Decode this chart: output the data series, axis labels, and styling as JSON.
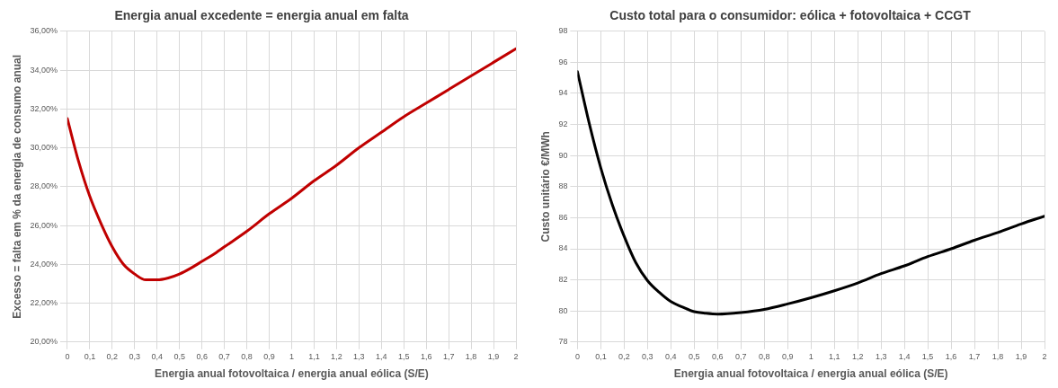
{
  "chart_data": [
    {
      "type": "line",
      "title": "Energia anual excedente = energia anual em falta",
      "xlabel": "Energia anual fotovoltaica / energia anual eólica (S/E)",
      "ylabel": "Excesso = falta em % da energia de consumo anual",
      "x": [
        0,
        0.05,
        0.1,
        0.15,
        0.2,
        0.25,
        0.3,
        0.35,
        0.4,
        0.45,
        0.5,
        0.55,
        0.6,
        0.65,
        0.7,
        0.8,
        0.9,
        1.0,
        1.1,
        1.2,
        1.3,
        1.4,
        1.5,
        1.6,
        1.7,
        1.8,
        1.9,
        2.0
      ],
      "series": [
        {
          "color": "#c00000",
          "values": [
            31.5,
            29.3,
            27.5,
            26.1,
            24.9,
            24.0,
            23.5,
            23.2,
            23.2,
            23.3,
            23.5,
            23.8,
            24.15,
            24.5,
            24.9,
            25.7,
            26.6,
            27.4,
            28.3,
            29.1,
            30.0,
            30.8,
            31.6,
            32.3,
            33.0,
            33.7,
            34.4,
            35.1
          ]
        }
      ],
      "xlim": [
        0,
        2
      ],
      "xticks": [
        0,
        {
          "value": 0.1,
          "label": "0,1"
        },
        {
          "value": 0.2,
          "label": "0,2"
        },
        {
          "value": 0.3,
          "label": "0,3"
        },
        {
          "value": 0.4,
          "label": "0,4"
        },
        {
          "value": 0.5,
          "label": "0,5"
        },
        {
          "value": 0.6,
          "label": "0,6"
        },
        {
          "value": 0.7,
          "label": "0,7"
        },
        {
          "value": 0.8,
          "label": "0,8"
        },
        {
          "value": 0.9,
          "label": "0,9"
        },
        1,
        {
          "value": 1.1,
          "label": "1,1"
        },
        {
          "value": 1.2,
          "label": "1,2"
        },
        {
          "value": 1.3,
          "label": "1,3"
        },
        {
          "value": 1.4,
          "label": "1,4"
        },
        {
          "value": 1.5,
          "label": "1,5"
        },
        {
          "value": 1.6,
          "label": "1,6"
        },
        {
          "value": 1.7,
          "label": "1,7"
        },
        {
          "value": 1.8,
          "label": "1,8"
        },
        {
          "value": 1.9,
          "label": "1,9"
        },
        2
      ],
      "ylim": [
        20,
        36
      ],
      "yticks": [
        {
          "value": 20,
          "label": "20,00%"
        },
        {
          "value": 22,
          "label": "22,00%"
        },
        {
          "value": 24,
          "label": "24,00%"
        },
        {
          "value": 26,
          "label": "26,00%"
        },
        {
          "value": 28,
          "label": "28,00%"
        },
        {
          "value": 30,
          "label": "30,00%"
        },
        {
          "value": 32,
          "label": "32,00%"
        },
        {
          "value": 34,
          "label": "34,00%"
        },
        {
          "value": 36,
          "label": "36,00%"
        }
      ],
      "grid": true,
      "legend": false,
      "marker": "none",
      "line_style": "solid"
    },
    {
      "type": "line",
      "title": "Custo total para o consumidor: eólica + fotovoltaica + CCGT",
      "xlabel": "Energia anual fotovoltaica / energia anual eólica (S/E)",
      "ylabel": "Custo unitário €/MWh",
      "x": [
        0,
        0.05,
        0.1,
        0.15,
        0.2,
        0.25,
        0.3,
        0.35,
        0.4,
        0.45,
        0.5,
        0.55,
        0.6,
        0.7,
        0.8,
        0.9,
        1.0,
        1.1,
        1.2,
        1.3,
        1.4,
        1.5,
        1.6,
        1.7,
        1.8,
        1.9,
        2.0
      ],
      "series": [
        {
          "color": "#000000",
          "values": [
            95.4,
            92.1,
            89.2,
            86.8,
            84.8,
            83.1,
            81.95,
            81.2,
            80.6,
            80.25,
            79.95,
            79.85,
            79.8,
            79.9,
            80.1,
            80.45,
            80.85,
            81.3,
            81.8,
            82.4,
            82.9,
            83.5,
            84.0,
            84.55,
            85.05,
            85.6,
            86.1
          ]
        }
      ],
      "xlim": [
        0,
        2
      ],
      "xticks": [
        0,
        {
          "value": 0.1,
          "label": "0,1"
        },
        {
          "value": 0.2,
          "label": "0,2"
        },
        {
          "value": 0.3,
          "label": "0,3"
        },
        {
          "value": 0.4,
          "label": "0,4"
        },
        {
          "value": 0.5,
          "label": "0,5"
        },
        {
          "value": 0.6,
          "label": "0,6"
        },
        {
          "value": 0.7,
          "label": "0,7"
        },
        {
          "value": 0.8,
          "label": "0,8"
        },
        {
          "value": 0.9,
          "label": "0,9"
        },
        1,
        {
          "value": 1.1,
          "label": "1,1"
        },
        {
          "value": 1.2,
          "label": "1,2"
        },
        {
          "value": 1.3,
          "label": "1,3"
        },
        {
          "value": 1.4,
          "label": "1,4"
        },
        {
          "value": 1.5,
          "label": "1,5"
        },
        {
          "value": 1.6,
          "label": "1,6"
        },
        {
          "value": 1.7,
          "label": "1,7"
        },
        {
          "value": 1.8,
          "label": "1,8"
        },
        {
          "value": 1.9,
          "label": "1,9"
        },
        2
      ],
      "ylim": [
        78,
        98
      ],
      "yticks": [
        78,
        80,
        82,
        84,
        86,
        88,
        90,
        92,
        94,
        96,
        98
      ],
      "grid": true,
      "legend": false,
      "marker": "none",
      "line_style": "solid"
    }
  ]
}
